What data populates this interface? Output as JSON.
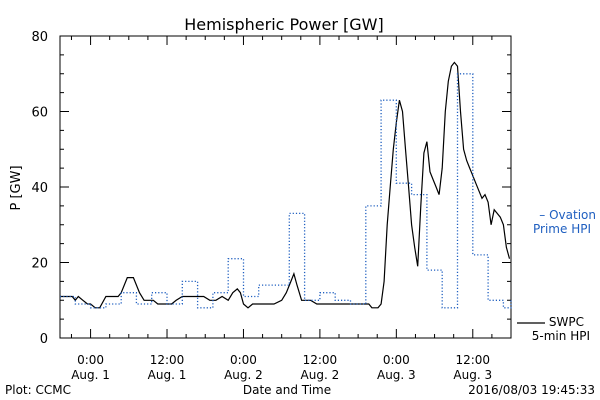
{
  "chart_data": {
    "type": "line",
    "title": "Hemispheric Power [GW]",
    "ylabel": "P [GW]",
    "xlabel": "Date and Time",
    "ylim": [
      0,
      80
    ],
    "yticks": [
      0,
      20,
      40,
      60,
      80
    ],
    "xlim": [
      -0.2,
      2.75
    ],
    "grid": false,
    "xticks": [
      {
        "x": 0.0,
        "time": "0:00",
        "date": "Aug. 1"
      },
      {
        "x": 0.5,
        "time": "12:00",
        "date": "Aug. 1"
      },
      {
        "x": 1.0,
        "time": "0:00",
        "date": "Aug. 2"
      },
      {
        "x": 1.5,
        "time": "12:00",
        "date": "Aug. 2"
      },
      {
        "x": 2.0,
        "time": "0:00",
        "date": "Aug. 3"
      },
      {
        "x": 2.5,
        "time": "12:00",
        "date": "Aug. 3"
      }
    ],
    "series": [
      {
        "name": "SWPC 5-min HPI",
        "color": "#000000",
        "style": "solid",
        "x": [
          -0.2,
          -0.12,
          -0.1,
          -0.08,
          -0.05,
          -0.02,
          0.0,
          0.03,
          0.06,
          0.1,
          0.14,
          0.18,
          0.2,
          0.24,
          0.28,
          0.32,
          0.35,
          0.38,
          0.41,
          0.44,
          0.47,
          0.5,
          0.53,
          0.56,
          0.6,
          0.65,
          0.7,
          0.74,
          0.78,
          0.82,
          0.86,
          0.9,
          0.93,
          0.96,
          0.98,
          1.0,
          1.03,
          1.06,
          1.1,
          1.15,
          1.2,
          1.25,
          1.28,
          1.31,
          1.33,
          1.35,
          1.38,
          1.41,
          1.44,
          1.48,
          1.52,
          1.56,
          1.6,
          1.64,
          1.67,
          1.72,
          1.75,
          1.78,
          1.8,
          1.82,
          1.84,
          1.86,
          1.88,
          1.9,
          1.92,
          1.94,
          1.96,
          1.98,
          2.0,
          2.02,
          2.04,
          2.06,
          2.08,
          2.1,
          2.12,
          2.14,
          2.16,
          2.18,
          2.2,
          2.22,
          2.24,
          2.26,
          2.28,
          2.3,
          2.32,
          2.34,
          2.36,
          2.38,
          2.4,
          2.42,
          2.44,
          2.46,
          2.48,
          2.5,
          2.52,
          2.54,
          2.56,
          2.58,
          2.6,
          2.62,
          2.64,
          2.66,
          2.68,
          2.7,
          2.72,
          2.74
        ],
        "y": [
          11,
          11,
          10,
          11,
          10,
          9,
          9,
          8,
          8,
          11,
          11,
          11,
          12,
          16,
          16,
          12,
          10,
          10,
          10,
          9,
          9,
          9,
          9,
          10,
          11,
          11,
          11,
          11,
          10,
          10,
          11,
          10,
          12,
          13,
          12,
          9,
          8,
          9,
          9,
          9,
          9,
          10,
          12,
          15,
          17,
          14,
          10,
          10,
          10,
          9,
          9,
          9,
          9,
          9,
          9,
          9,
          9,
          9,
          9,
          9,
          8,
          8,
          8,
          9,
          15,
          30,
          40,
          50,
          57,
          63,
          60,
          50,
          40,
          30,
          24,
          19,
          35,
          49,
          52,
          44,
          42,
          40,
          38,
          45,
          60,
          68,
          72,
          73,
          72,
          60,
          50,
          47,
          45,
          43,
          41,
          39,
          37,
          38,
          36,
          30,
          34,
          33,
          32,
          30,
          24,
          21
        ]
      },
      {
        "name": "Ovation Prime HPI",
        "color": "#1f5fc0",
        "style": "dotted",
        "x": [
          -0.2,
          -0.1,
          0.0,
          0.1,
          0.2,
          0.3,
          0.4,
          0.5,
          0.6,
          0.7,
          0.8,
          0.9,
          1.0,
          1.1,
          1.2,
          1.3,
          1.4,
          1.5,
          1.6,
          1.7,
          1.8,
          1.9,
          2.0,
          2.1,
          2.2,
          2.3,
          2.4,
          2.5,
          2.6,
          2.7,
          2.75
        ],
        "y": [
          11,
          9,
          8,
          9,
          12,
          9,
          12,
          9,
          15,
          8,
          12,
          21,
          11,
          14,
          14,
          33,
          10,
          12,
          10,
          9,
          35,
          63,
          41,
          38,
          18,
          8,
          70,
          22,
          10,
          8,
          10
        ]
      }
    ],
    "legend": {
      "placement": "right",
      "ovation": "– Ovation Prime HPI",
      "ovation_line1": "– Ovation",
      "ovation_line2": "Prime HPI",
      "swpc_line1": "SWPC",
      "swpc_line2": "5-min HPI"
    },
    "footer": {
      "left": "Plot: CCMC",
      "right": "2016/08/03 19:45:33"
    }
  }
}
